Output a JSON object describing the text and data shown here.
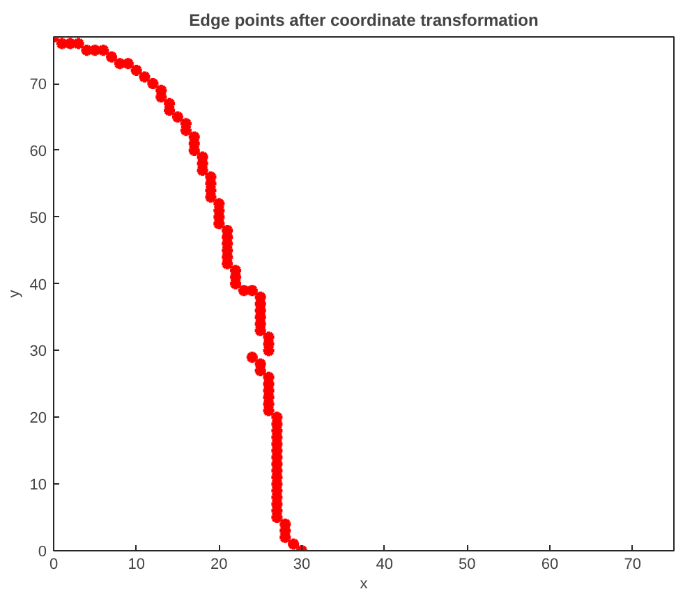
{
  "chart_data": {
    "type": "scatter",
    "title": "Edge points after coordinate transformation",
    "xlabel": "x",
    "ylabel": "y",
    "x": [
      0,
      1,
      2,
      3,
      4,
      5,
      6,
      7,
      8,
      9,
      10,
      11,
      12,
      13,
      13,
      14,
      14,
      15,
      16,
      16,
      17,
      17,
      17,
      18,
      18,
      18,
      19,
      19,
      19,
      19,
      20,
      20,
      20,
      20,
      21,
      21,
      21,
      21,
      21,
      21,
      22,
      22,
      22,
      23,
      24,
      25,
      25,
      25,
      25,
      25,
      25,
      26,
      26,
      26,
      24,
      25,
      25,
      26,
      26,
      26,
      26,
      26,
      26,
      27,
      27,
      27,
      27,
      27,
      27,
      27,
      27,
      27,
      27,
      27,
      27,
      27,
      27,
      27,
      27,
      28,
      28,
      28,
      29,
      30
    ],
    "values": [
      77,
      76,
      76,
      76,
      75,
      75,
      75,
      74,
      73,
      73,
      72,
      71,
      70,
      69,
      68,
      67,
      66,
      65,
      64,
      63,
      62,
      61,
      60,
      59,
      58,
      57,
      56,
      55,
      54,
      53,
      52,
      51,
      50,
      49,
      48,
      47,
      46,
      45,
      44,
      43,
      42,
      41,
      40,
      39,
      39,
      38,
      37,
      36,
      35,
      34,
      33,
      32,
      31,
      30,
      29,
      28,
      27,
      26,
      25,
      24,
      23,
      22,
      21,
      20,
      19,
      18,
      17,
      16,
      15,
      14,
      13,
      12,
      11,
      10,
      9,
      8,
      7,
      6,
      5,
      4,
      3,
      2,
      1,
      0
    ],
    "color": "#ff0000",
    "marker": "cross",
    "xlim": [
      0,
      75
    ],
    "ylim": [
      0,
      77
    ],
    "xticks": [
      0,
      10,
      20,
      30,
      40,
      50,
      60,
      70
    ],
    "yticks": [
      0,
      10,
      20,
      30,
      40,
      50,
      60,
      70
    ],
    "grid": false
  }
}
